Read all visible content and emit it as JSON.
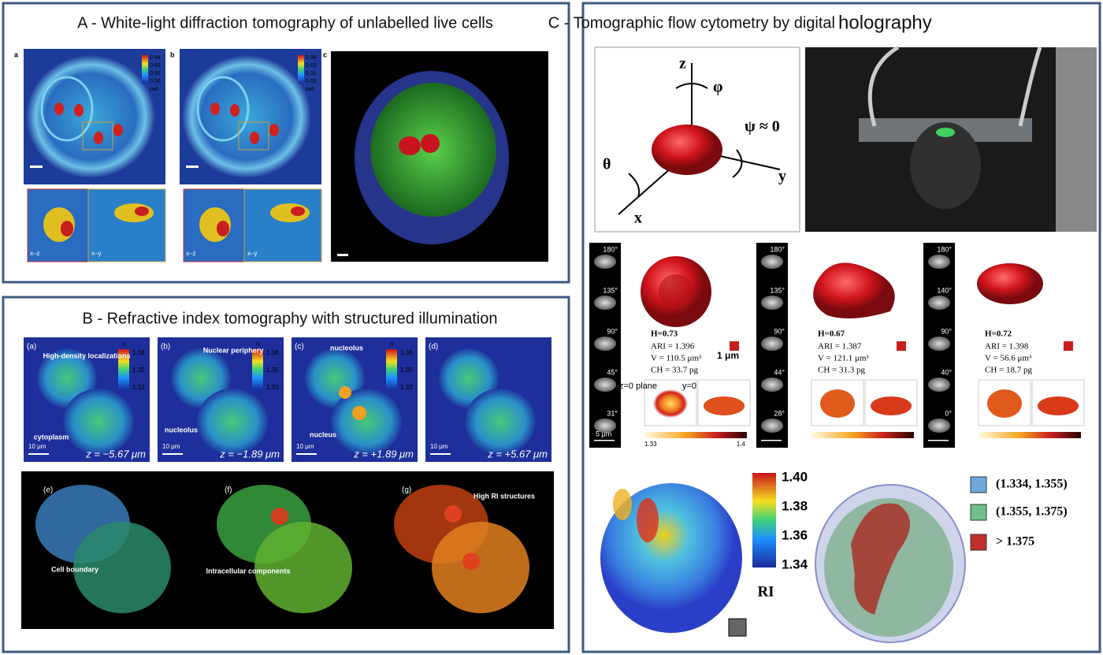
{
  "panel_a": {
    "title": "A - White-light diffraction tomography of unlabelled live cells",
    "labels": [
      "a",
      "b",
      "c"
    ],
    "colorbar": [
      "0.94",
      "0.63",
      "0.31",
      "0.00"
    ],
    "colorbar_unit": "rad",
    "inset_labels": [
      "x–z",
      "x–y"
    ]
  },
  "panel_b": {
    "title": "B - Refractive index tomography with structured illumination",
    "labels": [
      "(a)",
      "(b)",
      "(c)",
      "(d)",
      "(e)",
      "(f)",
      "(g)"
    ],
    "z_labels": [
      "z = −5.67 μm",
      "z = −1.89 μm",
      "z = +1.89 μm",
      "z = +5.67 μm"
    ],
    "scale": "10 μm",
    "colorbar_symbol": "n",
    "colorbar": [
      "1.38",
      "1.35",
      "1.33"
    ],
    "annotations": [
      "High-density localizations",
      "cytoplasm",
      "Nuclear periphery",
      "nucleolus",
      "nucleolus",
      "nucleus",
      "Cell boundary",
      "Intracellular components",
      "High RI structures"
    ]
  },
  "panel_c": {
    "title": "C - Tomographic flow cytometry by digital",
    "title_emphasis": "holography",
    "axes": {
      "z": "z",
      "phi": "φ",
      "psi": "ψ ≈ 0",
      "theta": "θ",
      "x": "x",
      "y": "y"
    },
    "cells": [
      {
        "angles": [
          "180°",
          "135°",
          "90°",
          "45°",
          "31°"
        ],
        "H": "H=0.73",
        "ARI": "ARI = 1.396",
        "V": "V = 110.5 μm³",
        "CH": "CH = 33.7 pg"
      },
      {
        "angles": [
          "180°",
          "135°",
          "90°",
          "44°",
          "28°"
        ],
        "H": "H=0.67",
        "ARI": "ARI = 1.387",
        "V": "V = 121.1 μm³",
        "CH": "CH = 31.3 pg"
      },
      {
        "angles": [
          "180°",
          "140°",
          "90°",
          "40°",
          "0°"
        ],
        "H": "H=0.72",
        "ARI": "ARI = 1.398",
        "V": "V = 56.6 μm³",
        "CH": "CH = 18.7 pg"
      }
    ],
    "cube_scale": "1 μm",
    "slice_labels": [
      "z=0 plane",
      "y=0"
    ],
    "scale": "5 μm",
    "range": [
      "1.33",
      "1.4"
    ],
    "ri_colorbar": [
      "1.40",
      "1.38",
      "1.36",
      "1.34"
    ],
    "ri_label": "RI",
    "legend": [
      "(1.334, 1.355)",
      "(1.355, 1.375)",
      "> 1.375"
    ]
  }
}
